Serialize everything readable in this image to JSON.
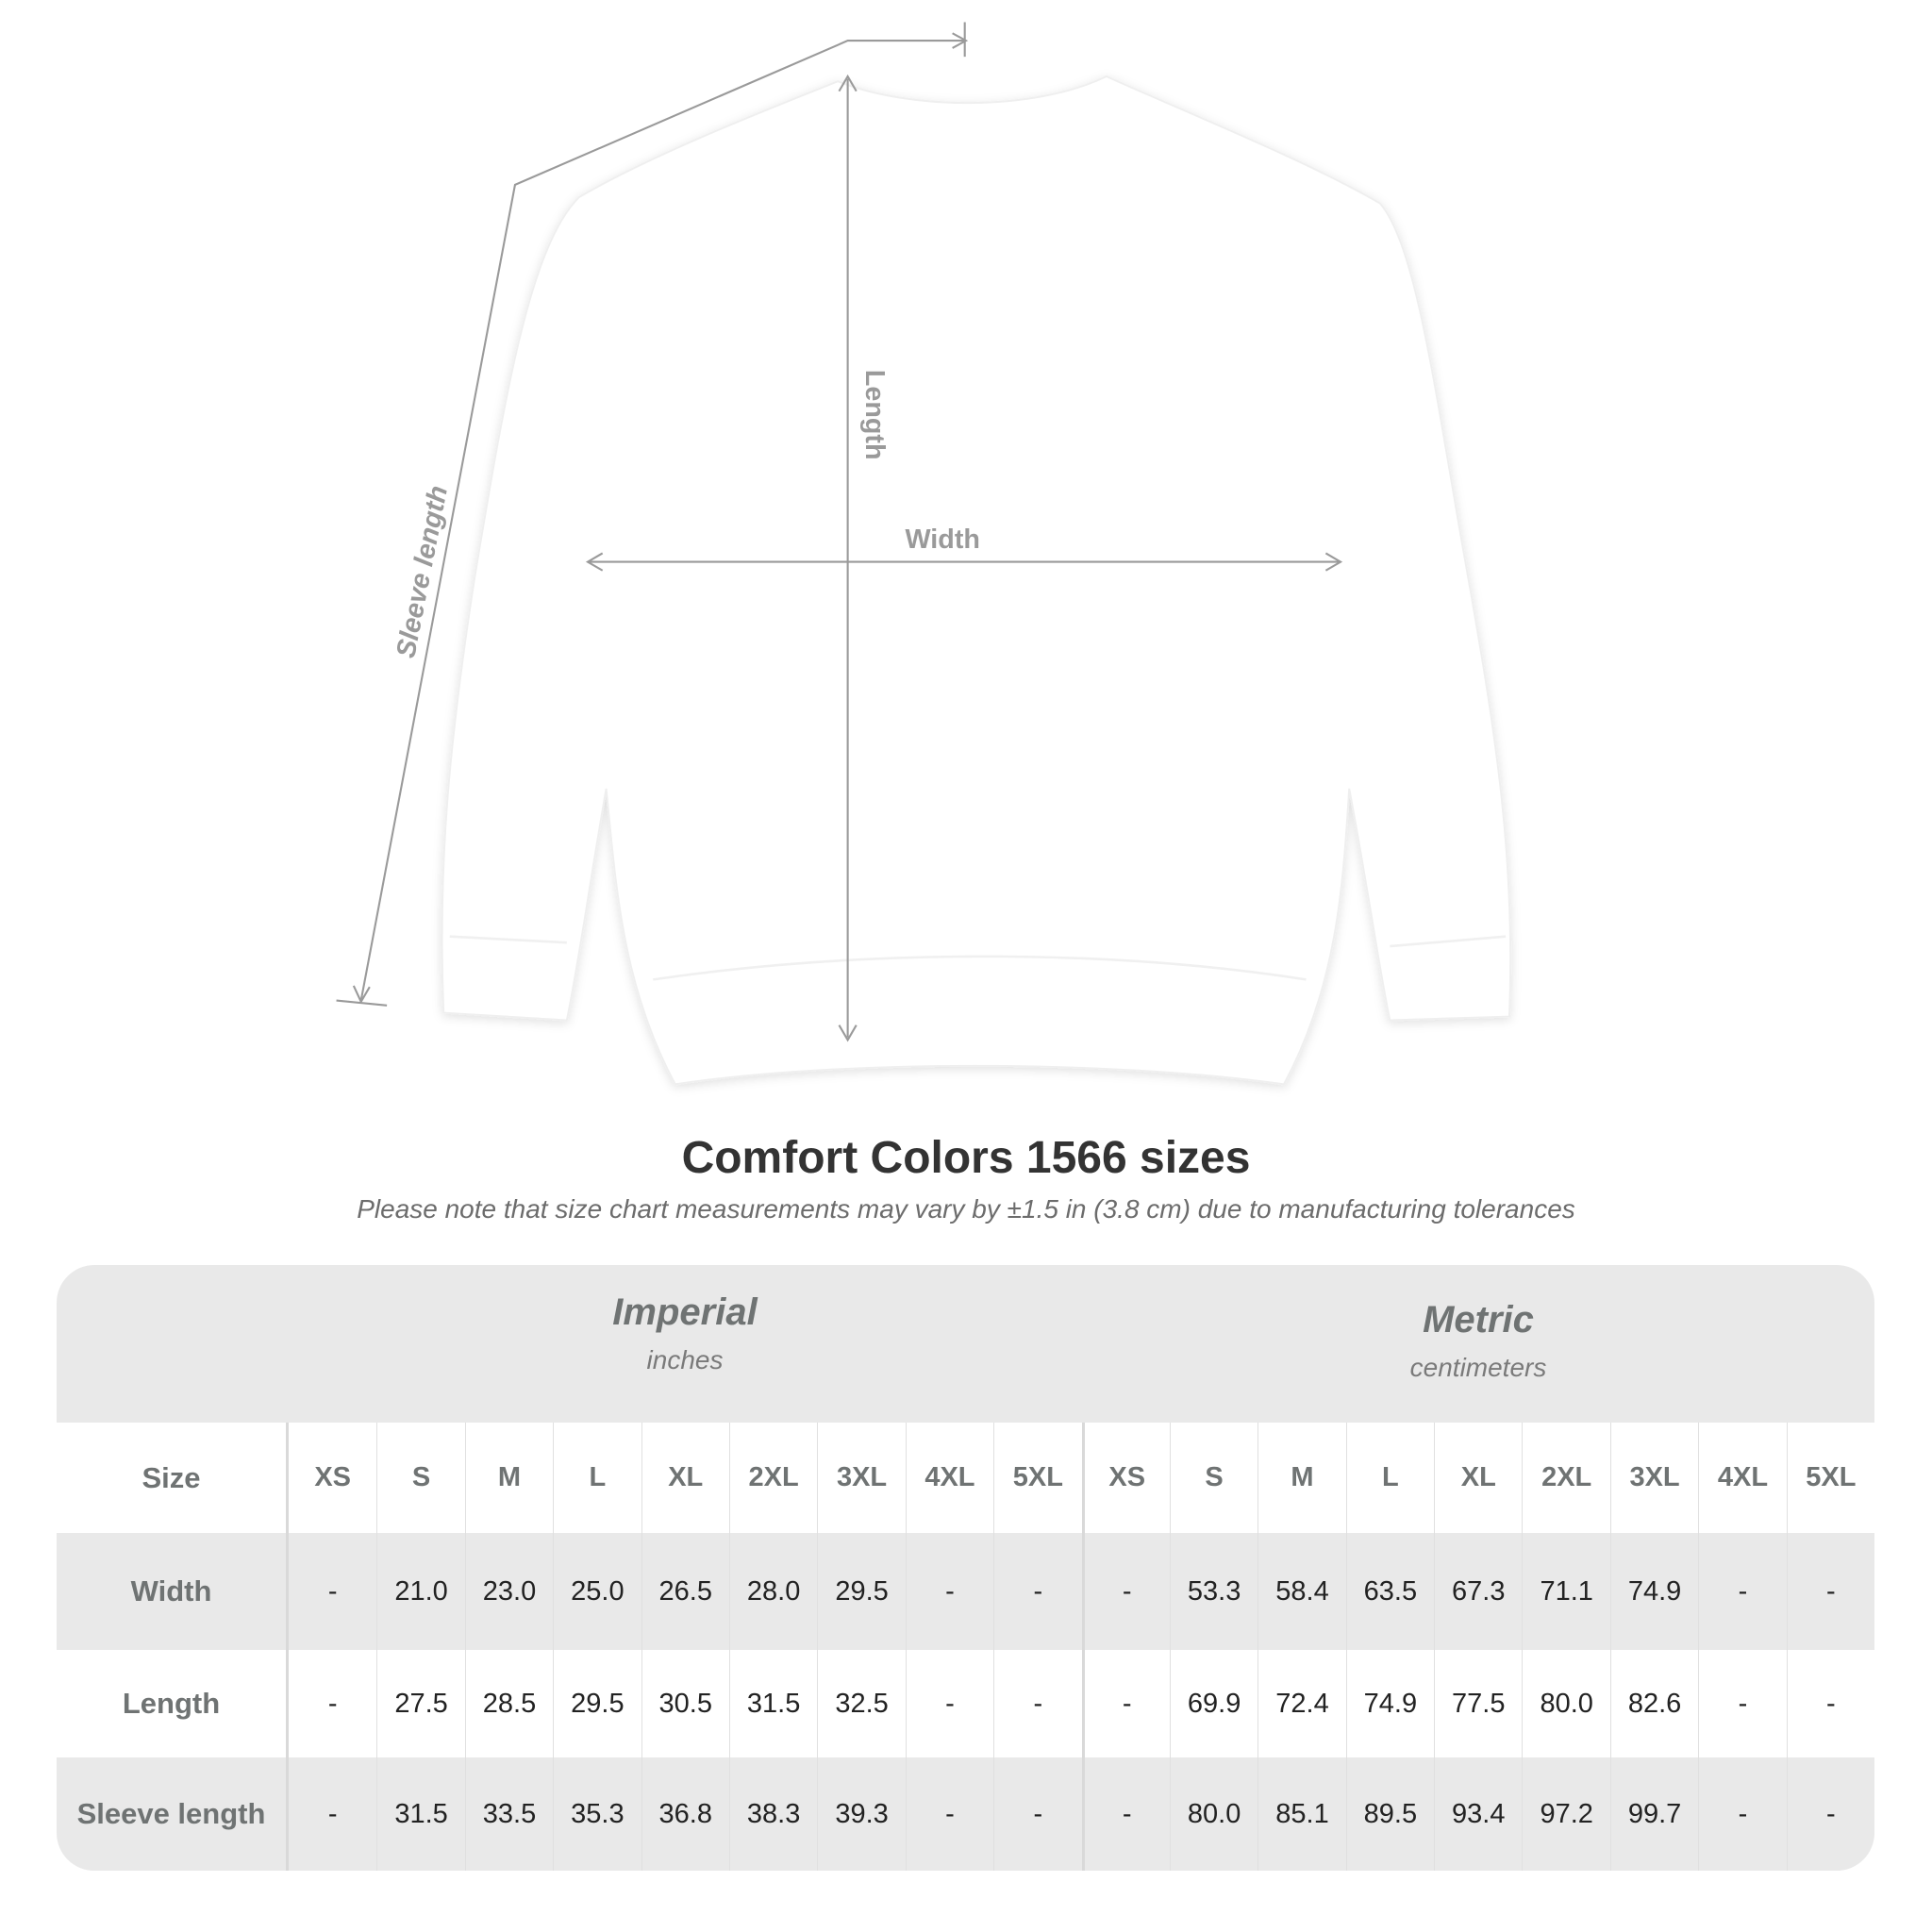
{
  "diagram": {
    "labels": {
      "length": "Length",
      "width": "Width",
      "sleeve": "Sleeve length"
    },
    "garment_color": "#ffffff",
    "line_color": "#9a9a9a"
  },
  "title": "Comfort Colors 1566 sizes",
  "note": "Please note that size chart measurements may vary by ±1.5 in (3.8 cm) due to manufacturing tolerances",
  "table": {
    "imperial": {
      "label": "Imperial",
      "unit": "inches"
    },
    "metric": {
      "label": "Metric",
      "unit": "centimeters"
    },
    "size_label": "Size",
    "sizes": [
      "XS",
      "S",
      "M",
      "L",
      "XL",
      "2XL",
      "3XL",
      "4XL",
      "5XL"
    ],
    "rows": [
      {
        "label": "Width",
        "imperial": [
          "-",
          "21.0",
          "23.0",
          "25.0",
          "26.5",
          "28.0",
          "29.5",
          "-",
          "-"
        ],
        "metric": [
          "-",
          "53.3",
          "58.4",
          "63.5",
          "67.3",
          "71.1",
          "74.9",
          "-",
          "-"
        ]
      },
      {
        "label": "Length",
        "imperial": [
          "-",
          "27.5",
          "28.5",
          "29.5",
          "30.5",
          "31.5",
          "32.5",
          "-",
          "-"
        ],
        "metric": [
          "-",
          "69.9",
          "72.4",
          "74.9",
          "77.5",
          "80.0",
          "82.6",
          "-",
          "-"
        ]
      },
      {
        "label": "Sleeve length",
        "imperial": [
          "-",
          "31.5",
          "33.5",
          "35.3",
          "36.8",
          "38.3",
          "39.3",
          "-",
          "-"
        ],
        "metric": [
          "-",
          "80.0",
          "85.1",
          "89.5",
          "93.4",
          "97.2",
          "99.7",
          "-",
          "-"
        ]
      }
    ]
  }
}
